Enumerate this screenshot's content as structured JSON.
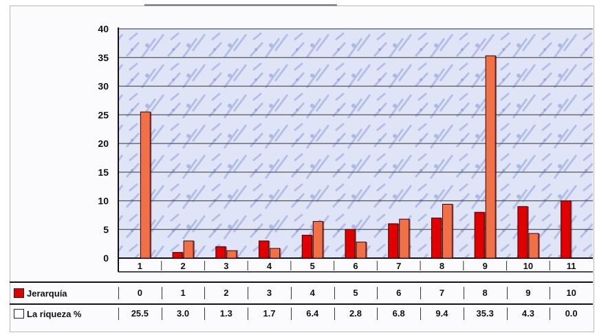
{
  "colors": {
    "series1": "#e00000",
    "series2": "#f07048",
    "grid": "#555555",
    "plot_bg": "#dfe5f6",
    "plot_texture": "#8f9fd8"
  },
  "chart_data": {
    "type": "bar",
    "categories": [
      "1",
      "2",
      "3",
      "4",
      "5",
      "6",
      "7",
      "8",
      "9",
      "10",
      "11"
    ],
    "series": [
      {
        "name": "Jerarquía",
        "values": [
          0,
          1,
          2,
          3,
          4,
          5,
          6,
          7,
          8,
          9,
          10
        ],
        "color": "#e00000"
      },
      {
        "name": "La riqueza %",
        "values": [
          25.5,
          3.0,
          1.3,
          1.7,
          6.4,
          2.8,
          6.8,
          9.4,
          35.3,
          4.3,
          0.0
        ],
        "color": "#f07048"
      }
    ],
    "title": "",
    "xlabel": "",
    "ylabel": "",
    "ylim": [
      0,
      40
    ],
    "yticks": [
      "0",
      "5",
      "10",
      "15",
      "20",
      "25",
      "30",
      "35",
      "40"
    ],
    "grid": true,
    "legend": "table-left",
    "table": {
      "rows": [
        {
          "label": "Jerarquía",
          "cells": [
            "0",
            "1",
            "2",
            "3",
            "4",
            "5",
            "6",
            "7",
            "8",
            "9",
            "10"
          ]
        },
        {
          "label": "La riqueza %",
          "cells": [
            "25.5",
            "3.0",
            "1.3",
            "1.7",
            "6.4",
            "2.8",
            "6.8",
            "9.4",
            "35.3",
            "4.3",
            "0.0"
          ]
        }
      ]
    }
  }
}
